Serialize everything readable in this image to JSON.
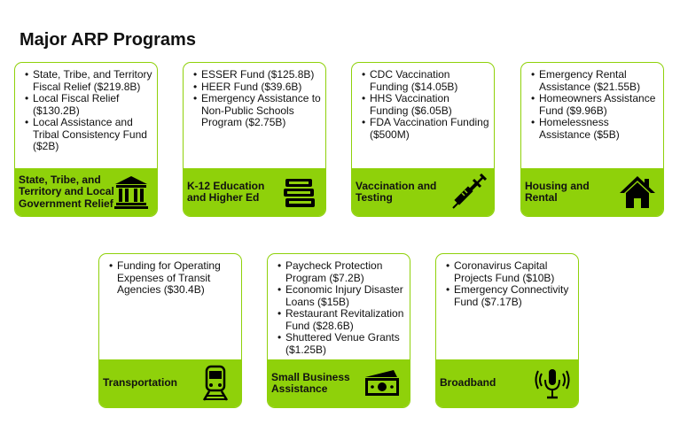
{
  "title": "Major ARP Programs",
  "cards": [
    {
      "items": [
        "State, Tribe, and Territory Fiscal Relief  ($219.8B)",
        "Local Fiscal Relief ($130.2B)",
        "Local Assistance and Tribal Consistency Fund ($2B)"
      ],
      "label": "State, Tribe, and\nTerritory and Local\nGovernment Relief",
      "icon": "government-building-icon"
    },
    {
      "items": [
        "ESSER Fund ($125.8B)",
        "HEER Fund ($39.6B)",
        "Emergency Assistance to Non-Public Schools Program ($2.75B)"
      ],
      "label": "K-12 Education\nand Higher Ed",
      "icon": "books-icon"
    },
    {
      "items": [
        "CDC Vaccination Funding ($14.05B)",
        "HHS Vaccination Funding ($6.05B)",
        "FDA Vaccination Funding ($500M)"
      ],
      "label": "Vaccination and\nTesting",
      "icon": "syringe-icon"
    },
    {
      "items": [
        "Emergency Rental Assistance ($21.55B)",
        "Homeowners Assistance Fund ($9.96B)",
        "Homelessness Assistance ($5B)"
      ],
      "label": "Housing and\nRental",
      "icon": "house-icon"
    },
    {
      "items": [
        "Funding for Operating Expenses of Transit Agencies ($30.4B)"
      ],
      "label": "Transportation",
      "icon": "train-icon"
    },
    {
      "items": [
        "Paycheck Protection Program ($7.2B)",
        "Economic Injury Disaster Loans ($15B)",
        "Restaurant Revitalization Fund ($28.6B)",
        "Shuttered Venue Grants ($1.25B)"
      ],
      "label": "Small Business\nAssistance",
      "icon": "money-icon"
    },
    {
      "items": [
        "Coronavirus Capital Projects Fund ($10B)",
        "Emergency Connectivity Fund ($7.17B)"
      ],
      "label": "Broadband",
      "icon": "broadcast-microphone-icon"
    }
  ],
  "colors": {
    "accent": "#8fd10a",
    "text": "#111111",
    "icon": "#000000"
  }
}
